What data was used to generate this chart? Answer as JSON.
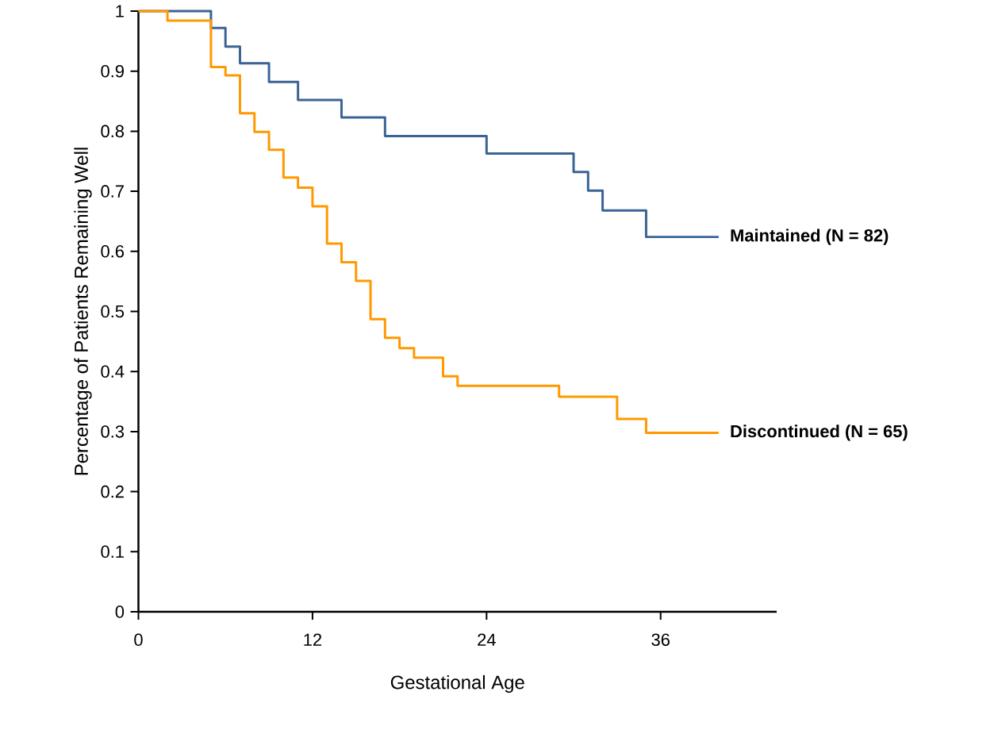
{
  "chart_data": {
    "type": "step",
    "xlabel": "Gestational Age",
    "ylabel": "Percentage of Patients Remaining Well",
    "xlim": [
      0,
      44
    ],
    "xticks": [
      0,
      12,
      24,
      36
    ],
    "ylim": [
      0,
      1
    ],
    "yticks": [
      0,
      0.1,
      0.2,
      0.3,
      0.4,
      0.5,
      0.6,
      0.7,
      0.8,
      0.9,
      1
    ],
    "grid": false,
    "legend": false,
    "marker": "none",
    "line_style": "solid",
    "series": [
      {
        "name": "Maintained (N = 82)",
        "color": "#3a6496",
        "x": [
          0,
          5,
          6,
          7,
          9,
          11,
          14,
          17,
          24,
          30,
          31,
          32,
          35,
          40
        ],
        "values": [
          1,
          0.972,
          0.941,
          0.913,
          0.882,
          0.852,
          0.823,
          0.792,
          0.763,
          0.732,
          0.701,
          0.668,
          0.624,
          0.624
        ]
      },
      {
        "name": "Discontinued (N = 65)",
        "color": "#ff9900",
        "x": [
          0,
          2,
          5,
          6,
          7,
          8,
          9,
          10,
          11,
          12,
          13,
          14,
          15,
          16,
          17,
          18,
          19,
          21,
          22,
          29,
          33,
          35,
          40
        ],
        "values": [
          1,
          0.984,
          0.907,
          0.893,
          0.83,
          0.799,
          0.769,
          0.723,
          0.706,
          0.675,
          0.613,
          0.582,
          0.551,
          0.487,
          0.456,
          0.439,
          0.423,
          0.392,
          0.376,
          0.358,
          0.321,
          0.298,
          0.298
        ]
      }
    ]
  }
}
